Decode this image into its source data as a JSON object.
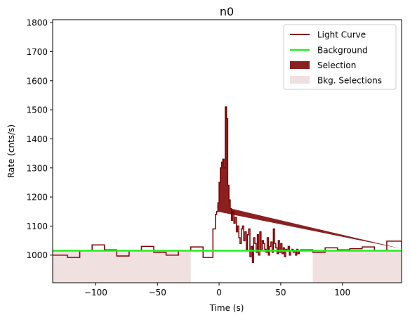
{
  "chart_data": {
    "type": "line",
    "title": "n0",
    "xlabel": "Time (s)",
    "ylabel": "Rate (cnts/s)",
    "xlim": [
      -135,
      148
    ],
    "ylim": [
      905,
      1810
    ],
    "xticks": [
      -100,
      -50,
      0,
      50,
      100
    ],
    "yticks": [
      1000,
      1100,
      1200,
      1300,
      1400,
      1500,
      1600,
      1700,
      1800
    ],
    "grid": false,
    "legend_position": "top-right",
    "colors": {
      "light_curve": "#7f0000",
      "background": "#22ee22",
      "selection": "#8b2020",
      "bkg_selection": "#f0e0e0"
    },
    "legend": [
      {
        "label": "Light Curve",
        "kind": "line",
        "color": "#7f0000"
      },
      {
        "label": "Background",
        "kind": "line",
        "color": "#22ee22"
      },
      {
        "label": "Selection",
        "kind": "patch",
        "color": "#8b2020"
      },
      {
        "label": "Bkg. Selections",
        "kind": "patch",
        "color": "#f0e0e0"
      }
    ],
    "bkg_selections": [
      [
        -135,
        -23
      ],
      [
        76,
        148
      ]
    ],
    "selection": [
      -1.5,
      10
    ],
    "background_level": 1015,
    "background_x": [
      -135,
      148
    ],
    "light_curve": {
      "edges": [
        -135,
        -123,
        -113,
        -103,
        -93,
        -83,
        -73,
        -63,
        -53,
        -43,
        -33,
        -23,
        -13,
        -5,
        -3,
        -2,
        -1,
        0,
        1,
        2,
        3,
        4,
        5,
        6,
        7,
        8,
        9,
        10,
        11,
        12,
        13,
        14,
        15,
        16,
        17,
        18,
        19,
        20,
        21,
        22,
        23,
        24,
        25,
        26,
        27,
        28,
        29,
        30,
        31,
        32,
        33,
        34,
        35,
        36,
        37,
        38,
        39,
        40,
        41,
        42,
        43,
        44,
        45,
        46,
        47,
        48,
        49,
        50,
        51,
        52,
        53,
        54,
        55,
        56,
        57,
        58,
        59,
        60,
        61,
        62,
        63,
        64,
        65,
        66,
        76,
        86,
        96,
        106,
        116,
        126,
        136,
        148
      ],
      "values": [
        1000,
        992,
        1015,
        1035,
        1018,
        997,
        1015,
        1030,
        1010,
        1000,
        1015,
        1028,
        992,
        1090,
        1140,
        1150,
        1180,
        1250,
        1300,
        1320,
        1330,
        1300,
        1510,
        1470,
        1240,
        1190,
        1160,
        1120,
        1150,
        1110,
        1130,
        1080,
        1100,
        1060,
        1040,
        1090,
        1100,
        1050,
        1080,
        1020,
        1070,
        1090,
        995,
        1030,
        975,
        1060,
        1040,
        1010,
        1070,
        1000,
        1080,
        1015,
        1050,
        1040,
        1020,
        1010,
        1060,
        1000,
        1030,
        1045,
        1010,
        1090,
        1040,
        1025,
        1005,
        1050,
        1010,
        1040,
        1005,
        1025,
        995,
        1020,
        1015,
        1030,
        1000,
        1015,
        1020,
        1010,
        1015,
        1000,
        1020,
        1005,
        1015,
        1018,
        1010,
        1025,
        1018,
        1022,
        1028,
        1015,
        1048,
        1022
      ]
    }
  }
}
